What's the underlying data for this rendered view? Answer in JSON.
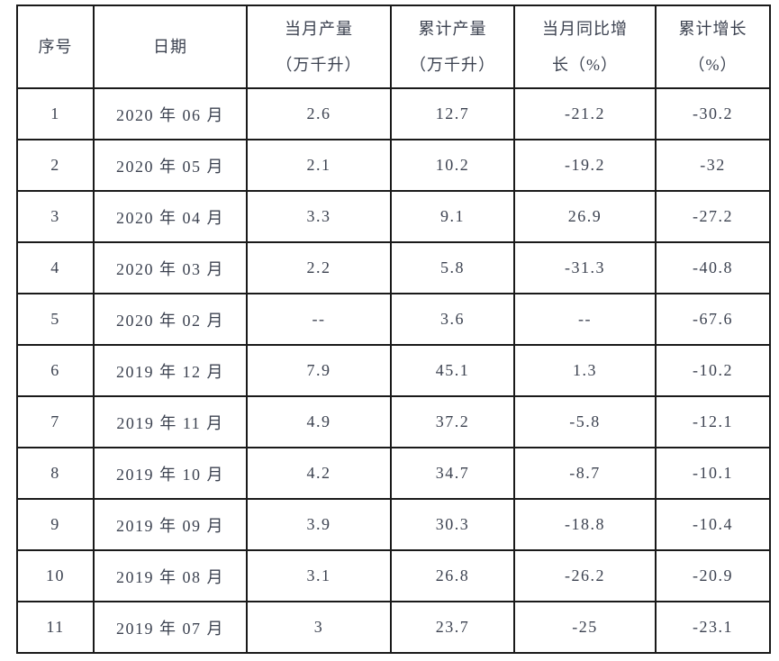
{
  "colors": {
    "background": "#ffffff",
    "border": "#1a1a1a",
    "text": "#3c4250"
  },
  "table": {
    "columns": [
      {
        "label": "序号"
      },
      {
        "label": "日期"
      },
      {
        "label": "当月产量\n（万千升）"
      },
      {
        "label": "累计产量\n（万千升）"
      },
      {
        "label": "当月同比增\n长（%）"
      },
      {
        "label": "累计增长\n（%）"
      }
    ],
    "rows": [
      [
        "1",
        "2020 年 06 月",
        "2.6",
        "12.7",
        "-21.2",
        "-30.2"
      ],
      [
        "2",
        "2020 年 05 月",
        "2.1",
        "10.2",
        "-19.2",
        "-32"
      ],
      [
        "3",
        "2020 年 04 月",
        "3.3",
        "9.1",
        "26.9",
        "-27.2"
      ],
      [
        "4",
        "2020 年 03 月",
        "2.2",
        "5.8",
        "-31.3",
        "-40.8"
      ],
      [
        "5",
        "2020 年 02 月",
        "--",
        "3.6",
        "--",
        "-67.6"
      ],
      [
        "6",
        "2019 年 12 月",
        "7.9",
        "45.1",
        "1.3",
        "-10.2"
      ],
      [
        "7",
        "2019 年 11 月",
        "4.9",
        "37.2",
        "-5.8",
        "-12.1"
      ],
      [
        "8",
        "2019 年 10 月",
        "4.2",
        "34.7",
        "-8.7",
        "-10.1"
      ],
      [
        "9",
        "2019 年 09 月",
        "3.9",
        "30.3",
        "-18.8",
        "-10.4"
      ],
      [
        "10",
        "2019 年 08 月",
        "3.1",
        "26.8",
        "-26.2",
        "-20.9"
      ],
      [
        "11",
        "2019 年 07 月",
        "3",
        "23.7",
        "-25",
        "-23.1"
      ]
    ]
  }
}
